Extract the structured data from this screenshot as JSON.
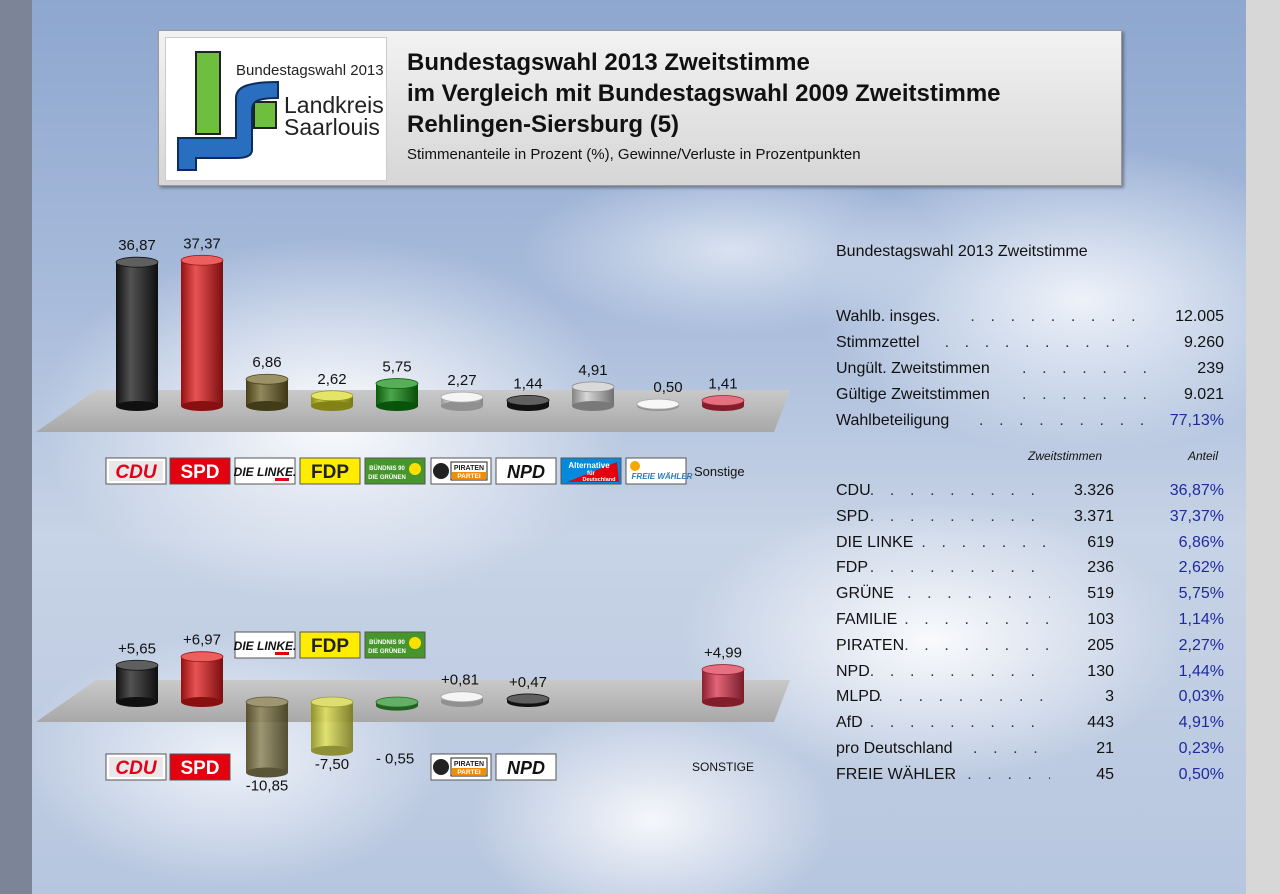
{
  "header": {
    "logo_line1": "Bundestagswahl 2013",
    "logo_line2a": "Landkreis",
    "logo_line2b": "Saarlouis",
    "title1": "Bundestagswahl 2013 Zweitstimme",
    "title2": "im Vergleich mit Bundestagswahl 2009 Zweitstimme",
    "title3": "Rehlingen-Siersburg (5)",
    "subtitle": "Stimmenanteile in Prozent (%), Gewinne/Verluste in Prozentpunkten"
  },
  "colors": {
    "panel_gray": "#bdbdbd",
    "pct_blue": "#1e2aa0"
  },
  "chart_data": [
    {
      "type": "bar",
      "title": "",
      "categories": [
        "CDU",
        "SPD",
        "DIE LINKE.",
        "FDP",
        "BÜNDNIS 90 DIE GRÜNEN",
        "PIRATEN PARTEI",
        "NPD",
        "Alternative für Deutschland",
        "FREIE WÄHLER",
        "Sonstige"
      ],
      "values": [
        36.87,
        37.37,
        6.86,
        2.62,
        5.75,
        2.27,
        1.44,
        4.91,
        0.5,
        1.41
      ],
      "value_labels": [
        "36,87",
        "37,37",
        "6,86",
        "2,62",
        "5,75",
        "2,27",
        "1,44",
        "4,91",
        "0,50",
        "1,41"
      ],
      "bar_colors": [
        "#1a1a1a",
        "#e21a1a",
        "#6e6226",
        "#d9d925",
        "#0f8a10",
        "#f0f0f0",
        "#1c1c1c",
        "#c9c9c9",
        "#f4f4f4",
        "#d8324a"
      ],
      "ylim": [
        0,
        40
      ],
      "other_label": "Sonstige"
    },
    {
      "type": "bar",
      "title": "",
      "categories": [
        "CDU",
        "SPD",
        "DIE LINKE.",
        "FDP",
        "GRÜNE",
        "PIRATEN",
        "NPD",
        "SONSTIGE"
      ],
      "values": [
        5.65,
        6.97,
        -10.85,
        -7.5,
        -0.55,
        0.81,
        0.47,
        4.99
      ],
      "value_labels": [
        "+5,65",
        "+6,97",
        "-10,85",
        "-7,50",
        "- 0,55",
        "+0,81",
        "+0,47",
        "+4,99"
      ],
      "bar_colors": [
        "#1a1a1a",
        "#e21a1a",
        "#6e6226",
        "#d9d925",
        "#0f8a10",
        "#f0f0f0",
        "#1c1c1c",
        "#d8324a"
      ],
      "other_label": "SONSTIGE"
    }
  ],
  "logos": {
    "cdu": "CDU",
    "spd": "SPD",
    "linke": "DIE LINKE.",
    "fdp": "FDP",
    "gruene1": "BÜNDNIS 90",
    "gruene2": "DIE GRÜNEN",
    "piraten1": "PIRATEN",
    "piraten2": "PARTEI",
    "npd": "NPD",
    "afd1": "Alternative",
    "afd2": "für",
    "afd3": "Deutschland",
    "fw": "FREIE WÄHLER"
  },
  "summary": {
    "title": "Bundestagswahl 2013 Zweitstimme",
    "rows": [
      {
        "label": "Wahlb. insges.",
        "value": "12.005"
      },
      {
        "label": "Stimmzettel",
        "value": "9.260"
      },
      {
        "label": "Ungült. Zweitstimmen",
        "value": "239"
      },
      {
        "label": "Gültige Zweitstimmen",
        "value": "9.021"
      },
      {
        "label": "Wahlbeteiligung",
        "value": "77,13%"
      }
    ],
    "col_votes": "Zweitstimmen",
    "col_share": "Anteil",
    "parties": [
      {
        "name": "CDU",
        "votes": "3.326",
        "share": "36,87%"
      },
      {
        "name": "SPD",
        "votes": "3.371",
        "share": "37,37%"
      },
      {
        "name": "DIE LINKE",
        "votes": "619",
        "share": "6,86%"
      },
      {
        "name": "FDP",
        "votes": "236",
        "share": "2,62%"
      },
      {
        "name": "GRÜNE",
        "votes": "519",
        "share": "5,75%"
      },
      {
        "name": "FAMILIE",
        "votes": "103",
        "share": "1,14%"
      },
      {
        "name": "PIRATEN",
        "votes": "205",
        "share": "2,27%"
      },
      {
        "name": "NPD",
        "votes": "130",
        "share": "1,44%"
      },
      {
        "name": "MLPD",
        "votes": "3",
        "share": "0,03%"
      },
      {
        "name": "AfD",
        "votes": "443",
        "share": "4,91%"
      },
      {
        "name": "pro Deutschland",
        "votes": "21",
        "share": "0,23%"
      },
      {
        "name": "FREIE WÄHLER",
        "votes": "45",
        "share": "0,50%"
      }
    ]
  }
}
